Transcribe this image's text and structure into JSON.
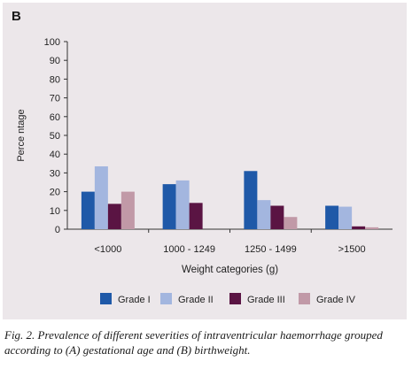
{
  "panel_label": "B",
  "chart_data": {
    "type": "bar",
    "categories": [
      "<1000",
      "1000 - 1249",
      "1250 - 1499",
      ">1500"
    ],
    "series": [
      {
        "name": "Grade I",
        "values": [
          20,
          24,
          31,
          12.5
        ]
      },
      {
        "name": "Grade II",
        "values": [
          33.5,
          26,
          15.5,
          12
        ]
      },
      {
        "name": "Grade III",
        "values": [
          13.5,
          14,
          12.5,
          1.5
        ]
      },
      {
        "name": "Grade IV",
        "values": [
          20,
          null,
          6.5,
          1
        ]
      }
    ],
    "colors": [
      "#1f59a8",
      "#a3b6df",
      "#5a1443",
      "#c199a7"
    ],
    "xlabel": "Weight categories (g)",
    "ylabel": "Perce ntage",
    "ylim": [
      0,
      100
    ],
    "yticks": [
      0,
      10,
      20,
      30,
      40,
      50,
      60,
      70,
      80,
      90,
      100
    ],
    "grid": false,
    "legend": "bottom"
  },
  "caption": "Fig. 2. Prevalence of different severities of intraventricular haemorrhage grouped according to (A) gestational age and (B) birthweight."
}
